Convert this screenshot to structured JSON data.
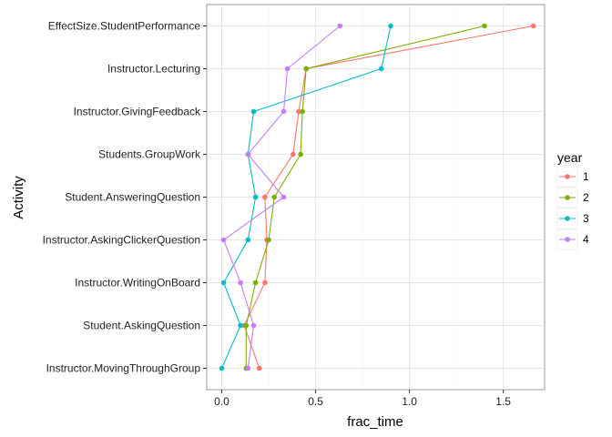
{
  "chart_data": {
    "type": "line",
    "xlabel": "frac_time",
    "ylabel": "Activity",
    "xlim": [
      -0.08,
      1.72
    ],
    "x_ticks": [
      0.0,
      0.5,
      1.0,
      1.5
    ],
    "x_tick_labels": [
      "0.0",
      "0.5",
      "1.0",
      "1.5"
    ],
    "categories": [
      "EffectSize.StudentPerformance",
      "Instructor.Lecturing",
      "Instructor.GivingFeedback",
      "Students.GroupWork",
      "Student.AnsweringQuestion",
      "Instructor.AskingClickerQuestion",
      "Instructor.WritingOnBoard",
      "Student.AskingQuestion",
      "Instructor.MovingThroughGroup"
    ],
    "grid": true,
    "legend_position": "right",
    "legend_title": "year",
    "series": [
      {
        "name": "1",
        "color": "#F8766D",
        "values": [
          1.66,
          0.45,
          0.41,
          0.38,
          0.23,
          0.24,
          0.23,
          0.12,
          0.2
        ]
      },
      {
        "name": "2",
        "color": "#7CAE00",
        "values": [
          1.4,
          0.45,
          0.43,
          0.42,
          0.28,
          0.25,
          0.18,
          0.13,
          0.13
        ]
      },
      {
        "name": "3",
        "color": "#00BFC4",
        "values": [
          0.9,
          0.85,
          0.17,
          0.14,
          0.18,
          0.14,
          0.01,
          0.1,
          0.0
        ]
      },
      {
        "name": "4",
        "color": "#C77CFF",
        "values": [
          0.63,
          0.35,
          0.33,
          0.14,
          0.33,
          0.01,
          0.1,
          0.17,
          0.14
        ]
      }
    ]
  }
}
